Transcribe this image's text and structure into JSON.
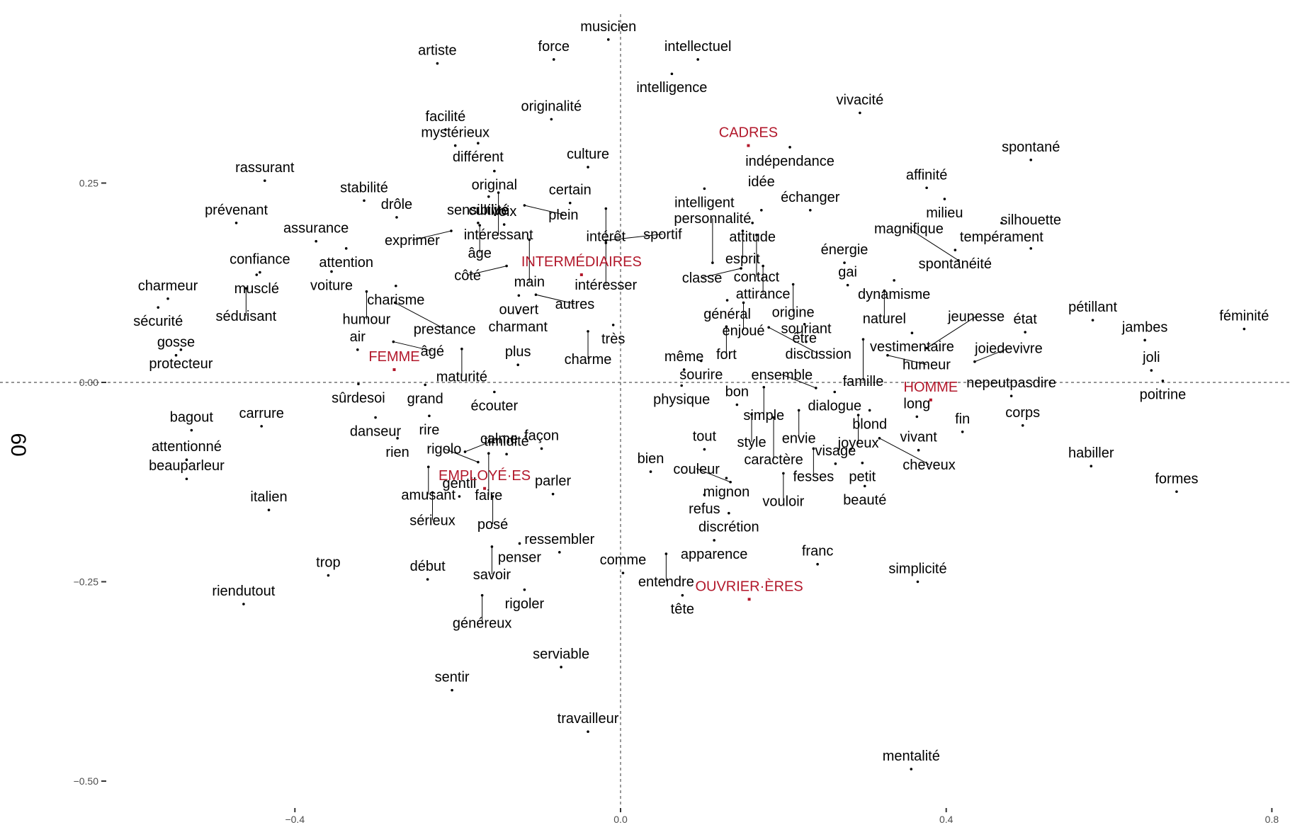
{
  "chart_data": {
    "type": "scatter",
    "title": "",
    "xlabel": "",
    "ylabel": "60",
    "xlim": [
      -0.63,
      0.81
    ],
    "ylim": [
      -0.55,
      0.365
    ],
    "x_ticks": [
      -0.4,
      0.0,
      0.4,
      0.8
    ],
    "x_tick_labels": [
      "−0.4",
      "0.0",
      "0.4",
      "0.8"
    ],
    "y_ticks": [
      0.25,
      0.0,
      -0.25,
      -0.5
    ],
    "y_tick_labels": [
      "0.25",
      "0.00",
      "−0.25",
      "−0.50"
    ],
    "reference_lines": {
      "x": 0.0,
      "y": 0.0,
      "style": "dashed"
    },
    "grid": false,
    "legend": "none",
    "colors": {
      "words": "#000000",
      "groups": "#b2182b",
      "axis_text": "#4d4d4d"
    },
    "groups": [
      {
        "label": "CADRES",
        "x": 0.157,
        "y": 0.297
      },
      {
        "label": "INTERMÉDIAIRES",
        "x": -0.048,
        "y": 0.135
      },
      {
        "label": "FEMME",
        "x": -0.278,
        "y": 0.016
      },
      {
        "label": "HOMME",
        "x": 0.381,
        "y": -0.022
      },
      {
        "label": "EMPLOYÉ·ES",
        "x": -0.167,
        "y": -0.133
      },
      {
        "label": "OUVRIER·ÈRES",
        "x": 0.158,
        "y": -0.272
      }
    ],
    "words": [
      {
        "label": "musicien",
        "x": -0.015,
        "y": 0.43
      },
      {
        "label": "intellectuel",
        "x": 0.095,
        "y": 0.405
      },
      {
        "label": "artiste",
        "x": -0.225,
        "y": 0.4
      },
      {
        "label": "force",
        "x": -0.082,
        "y": 0.405
      },
      {
        "label": "intelligence",
        "x": 0.063,
        "y": 0.387
      },
      {
        "label": "vivacité",
        "x": 0.294,
        "y": 0.338
      },
      {
        "label": "originalité",
        "x": -0.085,
        "y": 0.33
      },
      {
        "label": "facilité",
        "x": -0.215,
        "y": 0.317
      },
      {
        "label": "différent",
        "x": -0.175,
        "y": 0.3
      },
      {
        "label": "mystérieux",
        "x": -0.203,
        "y": 0.297
      },
      {
        "label": "culture",
        "x": -0.04,
        "y": 0.27
      },
      {
        "label": "original",
        "x": -0.155,
        "y": 0.265
      },
      {
        "label": "indépendance",
        "x": 0.208,
        "y": 0.295
      },
      {
        "label": "spontané",
        "x": 0.504,
        "y": 0.279
      },
      {
        "label": "rassurant",
        "x": -0.437,
        "y": 0.253
      },
      {
        "label": "stabilité",
        "x": -0.315,
        "y": 0.228
      },
      {
        "label": "cultivé",
        "x": -0.162,
        "y": 0.233
      },
      {
        "label": "intéressant",
        "x": -0.15,
        "y": 0.238
      },
      {
        "label": "certain",
        "x": -0.062,
        "y": 0.225
      },
      {
        "label": "intelligent",
        "x": 0.103,
        "y": 0.243
      },
      {
        "label": "affinité",
        "x": 0.376,
        "y": 0.244
      },
      {
        "label": "drôle",
        "x": -0.275,
        "y": 0.207
      },
      {
        "label": "âge",
        "x": -0.173,
        "y": 0.197
      },
      {
        "label": "plein",
        "x": -0.118,
        "y": 0.222
      },
      {
        "label": "intérêt",
        "x": -0.018,
        "y": 0.218
      },
      {
        "label": "attitude",
        "x": 0.162,
        "y": 0.2
      },
      {
        "label": "idée",
        "x": 0.173,
        "y": 0.216
      },
      {
        "label": "échanger",
        "x": 0.233,
        "y": 0.216
      },
      {
        "label": "milieu",
        "x": 0.398,
        "y": 0.23
      },
      {
        "label": "prévenant",
        "x": -0.472,
        "y": 0.2
      },
      {
        "label": "esprit",
        "x": 0.15,
        "y": 0.19
      },
      {
        "label": "contact",
        "x": 0.167,
        "y": 0.185
      },
      {
        "label": "tempérament",
        "x": 0.468,
        "y": 0.2
      },
      {
        "label": "intéresser",
        "x": -0.018,
        "y": 0.175
      },
      {
        "label": "assurance",
        "x": -0.374,
        "y": 0.177
      },
      {
        "label": "attention",
        "x": -0.337,
        "y": 0.168
      },
      {
        "label": "exprimer",
        "x": -0.208,
        "y": 0.19
      },
      {
        "label": "voix",
        "x": -0.143,
        "y": 0.198
      },
      {
        "label": "main",
        "x": -0.112,
        "y": 0.179
      },
      {
        "label": "énergie",
        "x": 0.275,
        "y": 0.15
      },
      {
        "label": "spontanéité",
        "x": 0.411,
        "y": 0.166
      },
      {
        "label": "silhouette",
        "x": 0.504,
        "y": 0.168
      },
      {
        "label": "confiance",
        "x": -0.443,
        "y": 0.138
      },
      {
        "label": "voiture",
        "x": -0.355,
        "y": 0.139
      },
      {
        "label": "sensibilité",
        "x": -0.175,
        "y": 0.2
      },
      {
        "label": "côté",
        "x": -0.14,
        "y": 0.146
      },
      {
        "label": "personnalité",
        "x": 0.113,
        "y": 0.15
      },
      {
        "label": "attirance",
        "x": 0.175,
        "y": 0.146
      },
      {
        "label": "origine",
        "x": 0.212,
        "y": 0.123
      },
      {
        "label": "gai",
        "x": 0.279,
        "y": 0.122
      },
      {
        "label": "dynamisme",
        "x": 0.336,
        "y": 0.128
      },
      {
        "label": "magnifique",
        "x": 0.415,
        "y": 0.153
      },
      {
        "label": "classe",
        "x": 0.148,
        "y": 0.143
      },
      {
        "label": "sportif",
        "x": -0.018,
        "y": 0.178
      },
      {
        "label": "charmeur",
        "x": -0.556,
        "y": 0.105
      },
      {
        "label": "musclé",
        "x": -0.447,
        "y": 0.135
      },
      {
        "label": "séduisant",
        "x": -0.46,
        "y": 0.118
      },
      {
        "label": "charisme",
        "x": -0.276,
        "y": 0.121
      },
      {
        "label": "ouvert",
        "x": -0.125,
        "y": 0.109
      },
      {
        "label": "autres",
        "x": -0.104,
        "y": 0.11
      },
      {
        "label": "enjoué",
        "x": 0.151,
        "y": 0.1
      },
      {
        "label": "naturel",
        "x": 0.324,
        "y": 0.115
      },
      {
        "label": "humour",
        "x": -0.312,
        "y": 0.114
      },
      {
        "label": "prestance",
        "x": -0.277,
        "y": 0.1
      },
      {
        "label": "charmant",
        "x": -0.126,
        "y": 0.087
      },
      {
        "label": "très",
        "x": -0.009,
        "y": 0.072
      },
      {
        "label": "général",
        "x": 0.131,
        "y": 0.103
      },
      {
        "label": "être",
        "x": 0.226,
        "y": 0.073
      },
      {
        "label": "vestimentaire",
        "x": 0.358,
        "y": 0.062
      },
      {
        "label": "état",
        "x": 0.497,
        "y": 0.063
      },
      {
        "label": "pétillant",
        "x": 0.58,
        "y": 0.078
      },
      {
        "label": "sécurité",
        "x": -0.568,
        "y": 0.094
      },
      {
        "label": "protecteur",
        "x": -0.54,
        "y": 0.041
      },
      {
        "label": "fort",
        "x": 0.13,
        "y": 0.07
      },
      {
        "label": "discussion",
        "x": 0.182,
        "y": 0.069
      },
      {
        "label": "famille",
        "x": 0.298,
        "y": 0.054
      },
      {
        "label": "jeunesse",
        "x": 0.376,
        "y": 0.043
      },
      {
        "label": "jambes",
        "x": 0.644,
        "y": 0.053
      },
      {
        "label": "féminité",
        "x": 0.766,
        "y": 0.067
      },
      {
        "label": "charme",
        "x": -0.04,
        "y": 0.064
      },
      {
        "label": "air",
        "x": -0.323,
        "y": 0.041
      },
      {
        "label": "âgé",
        "x": -0.279,
        "y": 0.051
      },
      {
        "label": "maturité",
        "x": -0.195,
        "y": 0.042
      },
      {
        "label": "sourire",
        "x": 0.099,
        "y": 0.027
      },
      {
        "label": "souriant",
        "x": 0.228,
        "y": 0.051
      },
      {
        "label": "humeur",
        "x": 0.328,
        "y": 0.034
      },
      {
        "label": "joiedevivre",
        "x": 0.435,
        "y": 0.026
      },
      {
        "label": "joli",
        "x": 0.652,
        "y": 0.015
      },
      {
        "label": "gosse",
        "x": -0.546,
        "y": 0.034
      },
      {
        "label": "même",
        "x": 0.078,
        "y": 0.016
      },
      {
        "label": "dialogue",
        "x": 0.263,
        "y": -0.012
      },
      {
        "label": "grand",
        "x": -0.24,
        "y": -0.003
      },
      {
        "label": "plus",
        "x": -0.126,
        "y": 0.022
      },
      {
        "label": "sûrdesoi",
        "x": -0.322,
        "y": -0.002
      },
      {
        "label": "bon",
        "x": 0.143,
        "y": -0.028
      },
      {
        "label": "ensemble",
        "x": 0.24,
        "y": -0.007
      },
      {
        "label": "nepeutpasdire",
        "x": 0.48,
        "y": -0.017
      },
      {
        "label": "physique",
        "x": 0.075,
        "y": -0.004
      },
      {
        "label": "simple",
        "x": 0.176,
        "y": -0.006
      },
      {
        "label": "poitrine",
        "x": 0.666,
        "y": 0.002
      },
      {
        "label": "rire",
        "x": -0.235,
        "y": -0.042
      },
      {
        "label": "écouter",
        "x": -0.155,
        "y": -0.012
      },
      {
        "label": "style",
        "x": 0.161,
        "y": -0.04
      },
      {
        "label": "long",
        "x": 0.364,
        "y": -0.043
      },
      {
        "label": "blond",
        "x": 0.306,
        "y": -0.035
      },
      {
        "label": "corps",
        "x": 0.494,
        "y": -0.054
      },
      {
        "label": "danseur",
        "x": -0.301,
        "y": -0.044
      },
      {
        "label": "envie",
        "x": 0.219,
        "y": -0.035
      },
      {
        "label": "joyeux",
        "x": 0.292,
        "y": -0.041
      },
      {
        "label": "fin",
        "x": 0.42,
        "y": -0.062
      },
      {
        "label": "bagout",
        "x": -0.527,
        "y": -0.06
      },
      {
        "label": "carrure",
        "x": -0.441,
        "y": -0.055
      },
      {
        "label": "façon",
        "x": -0.097,
        "y": -0.083
      },
      {
        "label": "caractère",
        "x": 0.188,
        "y": -0.044
      },
      {
        "label": "tout",
        "x": 0.103,
        "y": -0.084
      },
      {
        "label": "fesses",
        "x": 0.237,
        "y": -0.083
      },
      {
        "label": "vivant",
        "x": 0.366,
        "y": -0.085
      },
      {
        "label": "attentionné",
        "x": -0.533,
        "y": -0.097
      },
      {
        "label": "calme",
        "x": -0.191,
        "y": -0.087
      },
      {
        "label": "faire",
        "x": -0.162,
        "y": -0.089
      },
      {
        "label": "rien",
        "x": -0.274,
        "y": -0.07
      },
      {
        "label": "timidité",
        "x": -0.14,
        "y": -0.09
      },
      {
        "label": "bien",
        "x": 0.037,
        "y": -0.112
      },
      {
        "label": "vouloir",
        "x": 0.2,
        "y": -0.114
      },
      {
        "label": "petit",
        "x": 0.297,
        "y": -0.101
      },
      {
        "label": "cheveux",
        "x": 0.318,
        "y": -0.07
      },
      {
        "label": "habiller",
        "x": 0.578,
        "y": -0.105
      },
      {
        "label": "amusant",
        "x": -0.236,
        "y": -0.106
      },
      {
        "label": "rigolo",
        "x": -0.175,
        "y": -0.1
      },
      {
        "label": "mignon",
        "x": 0.13,
        "y": -0.12
      },
      {
        "label": "visage",
        "x": 0.264,
        "y": -0.102
      },
      {
        "label": "formes",
        "x": 0.683,
        "y": -0.137
      },
      {
        "label": "beauparleur",
        "x": -0.533,
        "y": -0.121
      },
      {
        "label": "posé",
        "x": -0.157,
        "y": -0.143
      },
      {
        "label": "parler",
        "x": -0.083,
        "y": -0.14
      },
      {
        "label": "refus",
        "x": 0.103,
        "y": -0.141
      },
      {
        "label": "couleur",
        "x": 0.135,
        "y": -0.125
      },
      {
        "label": "beauté",
        "x": 0.3,
        "y": -0.13
      },
      {
        "label": "sérieux",
        "x": -0.231,
        "y": -0.138
      },
      {
        "label": "gentil",
        "x": -0.198,
        "y": -0.143
      },
      {
        "label": "italien",
        "x": -0.432,
        "y": -0.16
      },
      {
        "label": "discrétion",
        "x": 0.133,
        "y": -0.164
      },
      {
        "label": "apparence",
        "x": 0.115,
        "y": -0.198
      },
      {
        "label": "penser",
        "x": -0.124,
        "y": -0.202
      },
      {
        "label": "ressembler",
        "x": -0.075,
        "y": -0.213
      },
      {
        "label": "entendre",
        "x": 0.056,
        "y": -0.215
      },
      {
        "label": "savoir",
        "x": -0.158,
        "y": -0.206
      },
      {
        "label": "trop",
        "x": -0.359,
        "y": -0.242
      },
      {
        "label": "début",
        "x": -0.237,
        "y": -0.247
      },
      {
        "label": "franc",
        "x": 0.242,
        "y": -0.228
      },
      {
        "label": "simplicité",
        "x": 0.365,
        "y": -0.25
      },
      {
        "label": "rigoler",
        "x": -0.118,
        "y": -0.26
      },
      {
        "label": "comme",
        "x": 0.003,
        "y": -0.239
      },
      {
        "label": "riendutout",
        "x": -0.463,
        "y": -0.278
      },
      {
        "label": "généreux",
        "x": -0.17,
        "y": -0.267
      },
      {
        "label": "tête",
        "x": 0.076,
        "y": -0.267
      },
      {
        "label": "serviable",
        "x": -0.073,
        "y": -0.357
      },
      {
        "label": "sentir",
        "x": -0.207,
        "y": -0.386
      },
      {
        "label": "travailleur",
        "x": -0.04,
        "y": -0.438
      },
      {
        "label": "mentalité",
        "x": 0.357,
        "y": -0.485
      }
    ]
  }
}
